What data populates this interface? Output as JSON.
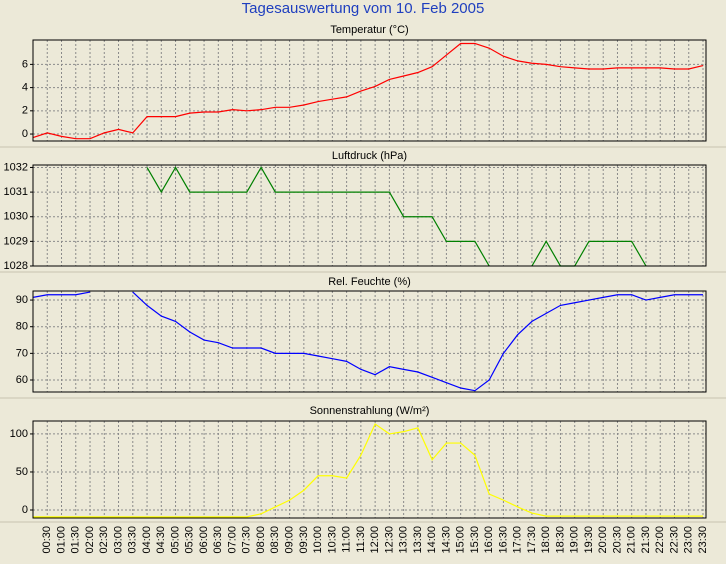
{
  "title": "Tagesauswertung vom 10. Feb 2005",
  "chart_data": [
    {
      "type": "line",
      "title": "Temperatur (°C)",
      "color": "#ff0000",
      "values": [
        -0.3,
        0.1,
        -0.2,
        -0.4,
        -0.4,
        0.1,
        0.4,
        0.1,
        1.5,
        1.5,
        1.5,
        1.8,
        1.9,
        1.9,
        2.1,
        2.0,
        2.1,
        2.3,
        2.3,
        2.5,
        2.8,
        3.0,
        3.2,
        3.7,
        4.1,
        4.7,
        5.0,
        5.3,
        5.8,
        6.8,
        7.8,
        7.8,
        7.4,
        6.7,
        6.3,
        6.1,
        6.0,
        5.8,
        5.7,
        5.6,
        5.6,
        5.7,
        5.7,
        5.7,
        5.7,
        5.6,
        5.6,
        5.9
      ],
      "ylim": [
        -0.6,
        8.1
      ],
      "yticks": [
        0,
        2,
        4,
        6
      ],
      "grid": true
    },
    {
      "type": "line",
      "title": "Luftdruck (hPa)",
      "color": "#008000",
      "values": [
        null,
        null,
        null,
        null,
        null,
        null,
        null,
        null,
        1032,
        1031,
        1032,
        1031,
        1031,
        1031,
        1031,
        1031,
        1032,
        1031,
        1031,
        1031,
        1031,
        1031,
        1031,
        1031,
        1031,
        1031,
        1030,
        1030,
        1030,
        1029,
        1029,
        1029,
        1028,
        null,
        null,
        1028,
        1029,
        1028,
        1028,
        1029,
        1029,
        1029,
        1029,
        1028,
        null,
        null,
        null,
        null
      ],
      "ylim": [
        1028,
        1032.1
      ],
      "yticks": [
        1028,
        1029,
        1030,
        1031,
        1032
      ],
      "grid": true
    },
    {
      "type": "line",
      "title": "Rel. Feuchte (%)",
      "color": "#0000ff",
      "values": [
        91,
        92,
        92,
        92,
        93,
        null,
        null,
        93,
        88,
        84,
        82,
        78,
        75,
        74,
        72,
        72,
        72,
        70,
        70,
        70,
        69,
        68,
        67,
        64,
        62,
        65,
        64,
        63,
        61,
        59,
        57,
        56,
        60,
        70,
        77,
        82,
        85,
        88,
        89,
        90,
        91,
        92,
        92,
        90,
        91,
        92,
        92,
        92
      ],
      "ylim": [
        55.5,
        93.4
      ],
      "yticks": [
        60,
        70,
        80,
        90
      ],
      "grid": true
    },
    {
      "type": "line",
      "title": "Sonnenstrahlung (W/m²)",
      "color": "#ffff00",
      "categories": [
        null,
        "00:30",
        "01:00",
        "01:30",
        "02:00",
        "02:30",
        "03:00",
        "03:30",
        "04:00",
        "04:30",
        "05:00",
        "05:30",
        "06:00",
        "06:30",
        "07:00",
        "07:30",
        "08:00",
        "08:30",
        "09:00",
        "09:30",
        "10:00",
        "10:30",
        "11:00",
        "11:30",
        "12:00",
        "12:30",
        "13:00",
        "13:30",
        "14:00",
        "14:30",
        "15:00",
        "15:30",
        "16:00",
        "16:30",
        "17:00",
        "17:30",
        "18:00",
        "18:30",
        "19:00",
        "19:30",
        "20:00",
        "20:30",
        "21:00",
        "21:30",
        "22:00",
        "22:30",
        "23:00",
        "23:30"
      ],
      "values": [
        -9,
        -9,
        -9,
        -9,
        -9,
        -9,
        -9,
        -9,
        -9,
        -9,
        -9,
        -9,
        -9,
        -9,
        -9,
        -9,
        -5,
        4,
        13,
        26,
        45,
        45,
        42,
        72,
        113,
        100,
        103,
        108,
        66,
        88,
        88,
        72,
        21,
        13,
        4,
        -4,
        -8,
        -8,
        -8,
        -8,
        -8,
        -8,
        -8,
        -8,
        -8,
        -8,
        -8,
        -8
      ],
      "ylim": [
        -10.5,
        117
      ],
      "yticks": [
        0,
        50,
        100
      ],
      "grid": true
    }
  ]
}
